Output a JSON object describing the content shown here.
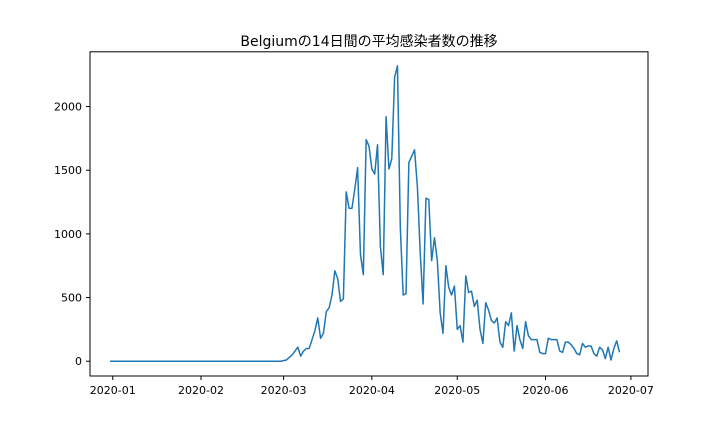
{
  "chart_data": {
    "type": "line",
    "title": "Belgiumの14日間の平均感染者数の推移",
    "xlabel": "",
    "ylabel": "",
    "x_start": "2019-12-31",
    "x_range": [
      "2019-12-24",
      "2020-07-07"
    ],
    "ylim": [
      -116,
      2430
    ],
    "grid": false,
    "line_color": "#1f77b4",
    "x_ticks": [
      {
        "value": "2020-01-01",
        "label": "2020-01"
      },
      {
        "value": "2020-02-01",
        "label": "2020-02"
      },
      {
        "value": "2020-03-01",
        "label": "2020-03"
      },
      {
        "value": "2020-04-01",
        "label": "2020-04"
      },
      {
        "value": "2020-05-01",
        "label": "2020-05"
      },
      {
        "value": "2020-06-01",
        "label": "2020-06"
      },
      {
        "value": "2020-07-01",
        "label": "2020-07"
      }
    ],
    "y_ticks": [
      0,
      500,
      1000,
      1500,
      2000
    ],
    "series": [
      {
        "name": "",
        "x_start": "2019-12-31",
        "step_days": 1,
        "values": [
          0,
          0,
          0,
          0,
          0,
          0,
          0,
          0,
          0,
          0,
          0,
          0,
          0,
          0,
          0,
          0,
          0,
          0,
          0,
          0,
          0,
          0,
          0,
          0,
          0,
          0,
          0,
          0,
          0,
          0,
          0,
          0,
          0,
          0,
          0,
          0,
          0,
          0,
          0,
          0,
          0,
          0,
          0,
          0,
          0,
          0,
          0,
          0,
          0,
          0,
          0,
          0,
          0,
          0,
          0,
          0,
          0,
          0,
          0,
          0,
          0,
          5,
          10,
          30,
          50,
          80,
          110,
          40,
          80,
          100,
          100,
          170,
          240,
          340,
          180,
          220,
          390,
          420,
          520,
          710,
          650,
          470,
          490,
          1330,
          1200,
          1200,
          1350,
          1520,
          840,
          680,
          1740,
          1690,
          1510,
          1470,
          1700,
          900,
          680,
          1920,
          1510,
          1590,
          2230,
          2320,
          1050,
          520,
          530,
          1560,
          1610,
          1660,
          1370,
          850,
          450,
          1280,
          1270,
          790,
          970,
          790,
          380,
          220,
          750,
          580,
          520,
          590,
          250,
          280,
          150,
          670,
          540,
          550,
          430,
          480,
          250,
          140,
          460,
          400,
          320,
          300,
          340,
          150,
          110,
          310,
          280,
          380,
          80,
          280,
          170,
          100,
          310,
          200,
          170,
          170,
          170,
          70,
          60,
          60,
          180,
          170,
          170,
          170,
          80,
          70,
          150,
          150,
          130,
          100,
          60,
          50,
          140,
          110,
          120,
          120,
          60,
          40,
          110,
          90,
          20,
          110,
          10,
          100,
          160,
          70
        ]
      }
    ]
  }
}
